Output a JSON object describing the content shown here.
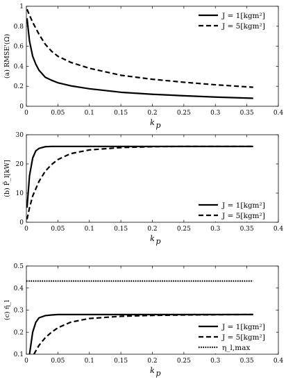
{
  "chart_data": [
    {
      "type": "line",
      "panel": "a",
      "ylabel": "(a) RMSE'(Ω)",
      "xlabel": "k",
      "xlabel_sub": "p",
      "xlim": [
        0,
        0.4
      ],
      "ylim": [
        0,
        1
      ],
      "xticks": [
        "0",
        "0.05",
        "0.1",
        "0.15",
        "0.2",
        "0.25",
        "0.3",
        "0.35",
        "0.4"
      ],
      "yticks": [
        "0",
        "0.2",
        "0.4",
        "0.6",
        "0.8",
        "1"
      ],
      "legend_position": "top-right",
      "series": [
        {
          "name": "J = 1[kgm²]",
          "style": "solid",
          "x": [
            0.001,
            0.005,
            0.01,
            0.015,
            0.02,
            0.03,
            0.04,
            0.05,
            0.07,
            0.1,
            0.15,
            0.2,
            0.25,
            0.3,
            0.36
          ],
          "y": [
            0.88,
            0.65,
            0.5,
            0.42,
            0.36,
            0.29,
            0.26,
            0.235,
            0.205,
            0.175,
            0.14,
            0.12,
            0.105,
            0.092,
            0.08
          ]
        },
        {
          "name": "J = 5[kgm²]",
          "style": "dashed",
          "x": [
            0.001,
            0.005,
            0.01,
            0.02,
            0.03,
            0.04,
            0.05,
            0.07,
            0.1,
            0.15,
            0.2,
            0.25,
            0.3,
            0.36
          ],
          "y": [
            0.97,
            0.91,
            0.84,
            0.72,
            0.62,
            0.55,
            0.5,
            0.44,
            0.38,
            0.31,
            0.27,
            0.24,
            0.215,
            0.19
          ]
        }
      ]
    },
    {
      "type": "line",
      "panel": "b",
      "ylabel": "(b) P̄_l[kW]",
      "xlabel": "k",
      "xlabel_sub": "p",
      "xlim": [
        0,
        0.4
      ],
      "ylim": [
        0,
        30
      ],
      "xticks": [
        "0",
        "0.05",
        "0.1",
        "0.15",
        "0.2",
        "0.25",
        "0.3",
        "0.35",
        "0.4"
      ],
      "yticks": [
        "0",
        "10",
        "20",
        "30"
      ],
      "legend_position": "bottom-right",
      "series": [
        {
          "name": "J = 1[kgm²]",
          "style": "solid",
          "x": [
            0.001,
            0.005,
            0.01,
            0.015,
            0.02,
            0.03,
            0.04,
            0.05,
            0.1,
            0.2,
            0.3,
            0.36
          ],
          "y": [
            5,
            16,
            22,
            24.5,
            25.3,
            25.9,
            26,
            26,
            26,
            26,
            26,
            26
          ]
        },
        {
          "name": "J = 5[kgm²]",
          "style": "dashed",
          "x": [
            0.001,
            0.005,
            0.01,
            0.02,
            0.03,
            0.04,
            0.05,
            0.07,
            0.1,
            0.15,
            0.2,
            0.25,
            0.3,
            0.36
          ],
          "y": [
            1,
            5,
            9,
            14,
            17.5,
            19.8,
            21.5,
            23.5,
            24.8,
            25.6,
            25.9,
            26,
            26,
            26
          ]
        }
      ]
    },
    {
      "type": "line",
      "panel": "c",
      "ylabel": "(c) η̄_l",
      "xlabel": "k",
      "xlabel_sub": "p",
      "xlim": [
        0,
        0.4
      ],
      "ylim": [
        0.1,
        0.5
      ],
      "xticks": [
        "0",
        "0.05",
        "0.1",
        "0.15",
        "0.2",
        "0.25",
        "0.3",
        "0.35",
        "0.4"
      ],
      "yticks": [
        "0.1",
        "0.2",
        "0.3",
        "0.4",
        "0.5"
      ],
      "legend_position": "bottom-right",
      "series": [
        {
          "name": "J = 1[kgm²]",
          "style": "solid",
          "x": [
            0.005,
            0.01,
            0.015,
            0.02,
            0.03,
            0.04,
            0.05,
            0.1,
            0.2,
            0.3,
            0.36
          ],
          "y": [
            0.1,
            0.2,
            0.245,
            0.265,
            0.275,
            0.278,
            0.28,
            0.28,
            0.28,
            0.28,
            0.28
          ]
        },
        {
          "name": "J = 5[kgm²]",
          "style": "dashed",
          "x": [
            0.012,
            0.02,
            0.03,
            0.04,
            0.05,
            0.07,
            0.1,
            0.15,
            0.2,
            0.25,
            0.3,
            0.36
          ],
          "y": [
            0.1,
            0.14,
            0.175,
            0.2,
            0.22,
            0.245,
            0.262,
            0.272,
            0.276,
            0.278,
            0.279,
            0.28
          ]
        },
        {
          "name": "η_l,max",
          "style": "dotted",
          "x": [
            0,
            0.36
          ],
          "y": [
            0.432,
            0.432
          ]
        }
      ]
    }
  ]
}
